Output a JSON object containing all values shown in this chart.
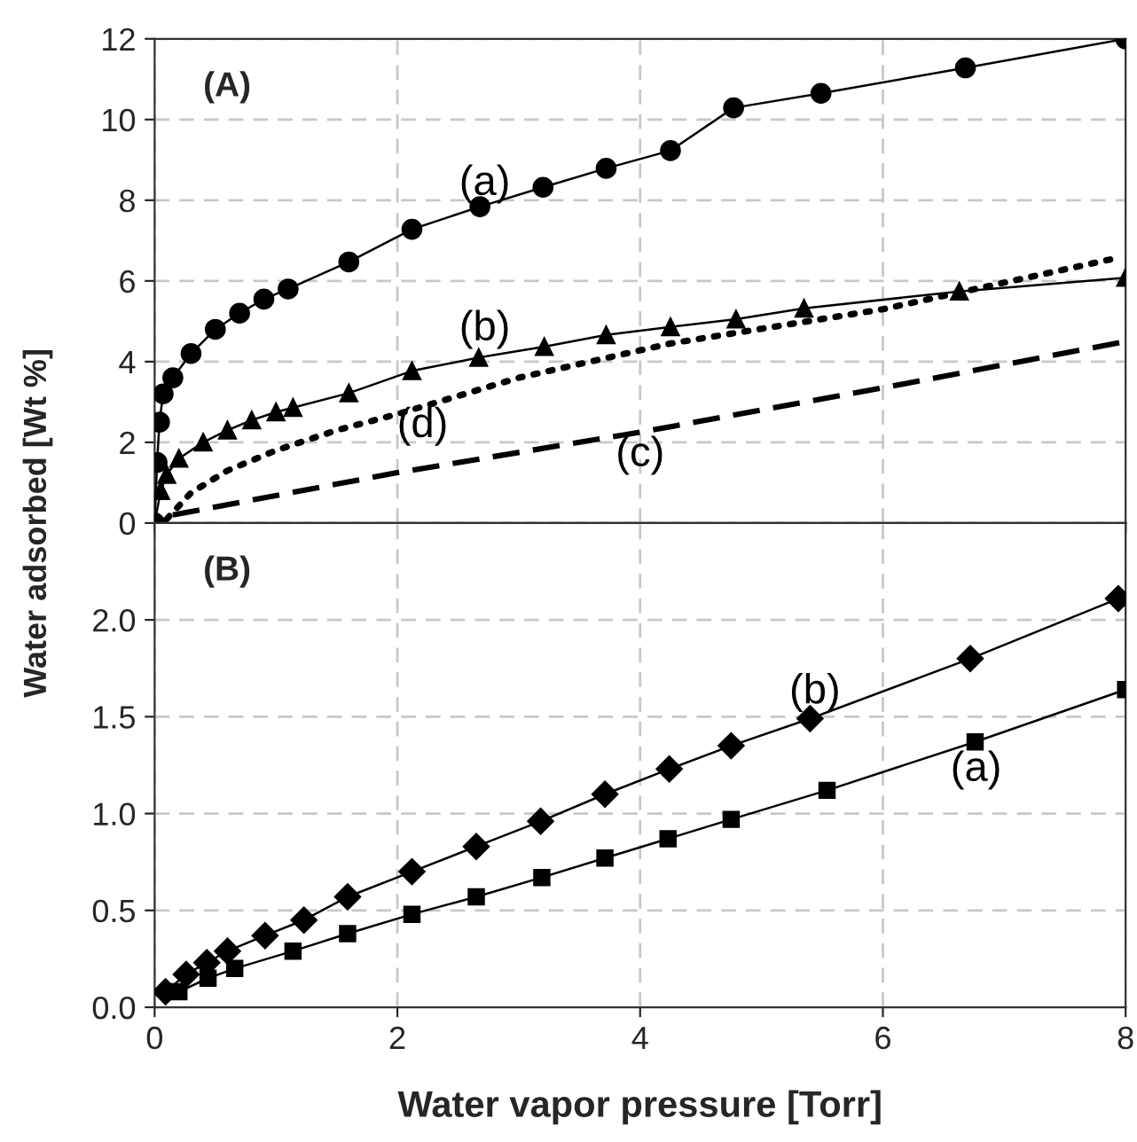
{
  "chart_data": [
    {
      "type": "line",
      "ylabel": "Water adsorbed [Wt %]",
      "annotations": [
        "(A)"
      ],
      "xlim": [
        0,
        8
      ],
      "xticks": [
        0,
        2,
        4,
        6,
        8
      ],
      "ylim": [
        0,
        12
      ],
      "yticks": [
        0,
        2,
        4,
        6,
        8,
        10,
        12
      ],
      "tick_labels": "y",
      "grid": true,
      "legend": false,
      "series": [
        {
          "name": "(a)",
          "color": "#000000",
          "marker": "circle",
          "line_style": "solid",
          "x": [
            0,
            0.02,
            0.04,
            0.07,
            0.15,
            0.3,
            0.5,
            0.7,
            0.9,
            1.1,
            1.6,
            2.12,
            2.68,
            3.2,
            3.72,
            4.25,
            4.77,
            5.49,
            6.68,
            8
          ],
          "values": [
            0,
            1.5,
            2.5,
            3.2,
            3.6,
            4.2,
            4.8,
            5.2,
            5.55,
            5.8,
            6.47,
            7.28,
            7.84,
            8.32,
            8.79,
            9.23,
            10.29,
            10.65,
            11.28,
            12
          ]
        },
        {
          "name": "(b)",
          "color": "#000000",
          "marker": "triangle",
          "line_style": "solid",
          "x": [
            0,
            0.05,
            0.1,
            0.2,
            0.4,
            0.6,
            0.8,
            1.0,
            1.14,
            1.6,
            2.12,
            2.67,
            3.21,
            3.72,
            4.25,
            4.79,
            5.35,
            6.63,
            8
          ],
          "values": [
            0,
            0.8,
            1.2,
            1.6,
            2.0,
            2.3,
            2.55,
            2.75,
            2.86,
            3.22,
            3.77,
            4.1,
            4.37,
            4.66,
            4.86,
            5.05,
            5.32,
            5.74,
            6.08
          ]
        },
        {
          "name": "(d)",
          "color": "#000000",
          "marker": "none",
          "line_style": "dotted",
          "x": [
            0.1,
            0.3,
            0.6,
            1,
            1.5,
            2,
            3,
            4.25,
            6,
            7.9
          ],
          "values": [
            0.1,
            0.75,
            1.3,
            1.8,
            2.3,
            2.7,
            3.6,
            4.45,
            5.3,
            6.55
          ]
        },
        {
          "name": "(c)",
          "color": "#000000",
          "marker": "none",
          "line_style": "dashed",
          "x": [
            0.15,
            2,
            4,
            6,
            8
          ],
          "values": [
            0.2,
            1.25,
            2.25,
            3.35,
            4.5
          ]
        }
      ]
    },
    {
      "type": "line",
      "xlabel": "Water vapor pressure [Torr]",
      "annotations": [
        "(B)"
      ],
      "xlim": [
        0,
        8
      ],
      "xticks": [
        0,
        2,
        4,
        6,
        8
      ],
      "ylim": [
        0,
        2.5
      ],
      "yticks": [
        {
          "value": 0,
          "label": "0.0"
        },
        {
          "value": 0.5,
          "label": "0.5"
        },
        {
          "value": 1,
          "label": "1.0"
        },
        {
          "value": 1.5,
          "label": "1.5"
        },
        {
          "value": 2,
          "label": "2.0"
        }
      ],
      "grid": true,
      "legend": false,
      "series": [
        {
          "name": "(b)",
          "color": "#000000",
          "marker": "diamond",
          "line_style": "solid",
          "x": [
            0.09,
            0.26,
            0.43,
            0.6,
            0.91,
            1.23,
            1.59,
            2.12,
            2.65,
            3.18,
            3.71,
            4.24,
            4.75,
            5.4,
            6.72,
            7.94
          ],
          "values": [
            0.08,
            0.17,
            0.23,
            0.29,
            0.37,
            0.45,
            0.57,
            0.7,
            0.83,
            0.96,
            1.1,
            1.23,
            1.35,
            1.49,
            1.8,
            2.11
          ]
        },
        {
          "name": "(a)",
          "color": "#000000",
          "marker": "square",
          "line_style": "solid",
          "x": [
            0.2,
            0.44,
            0.66,
            1.14,
            1.59,
            2.12,
            2.65,
            3.19,
            3.71,
            4.23,
            4.75,
            5.54,
            6.76,
            8
          ],
          "values": [
            0.08,
            0.15,
            0.2,
            0.29,
            0.38,
            0.48,
            0.57,
            0.67,
            0.77,
            0.87,
            0.97,
            1.12,
            1.37,
            1.64
          ]
        }
      ]
    }
  ]
}
